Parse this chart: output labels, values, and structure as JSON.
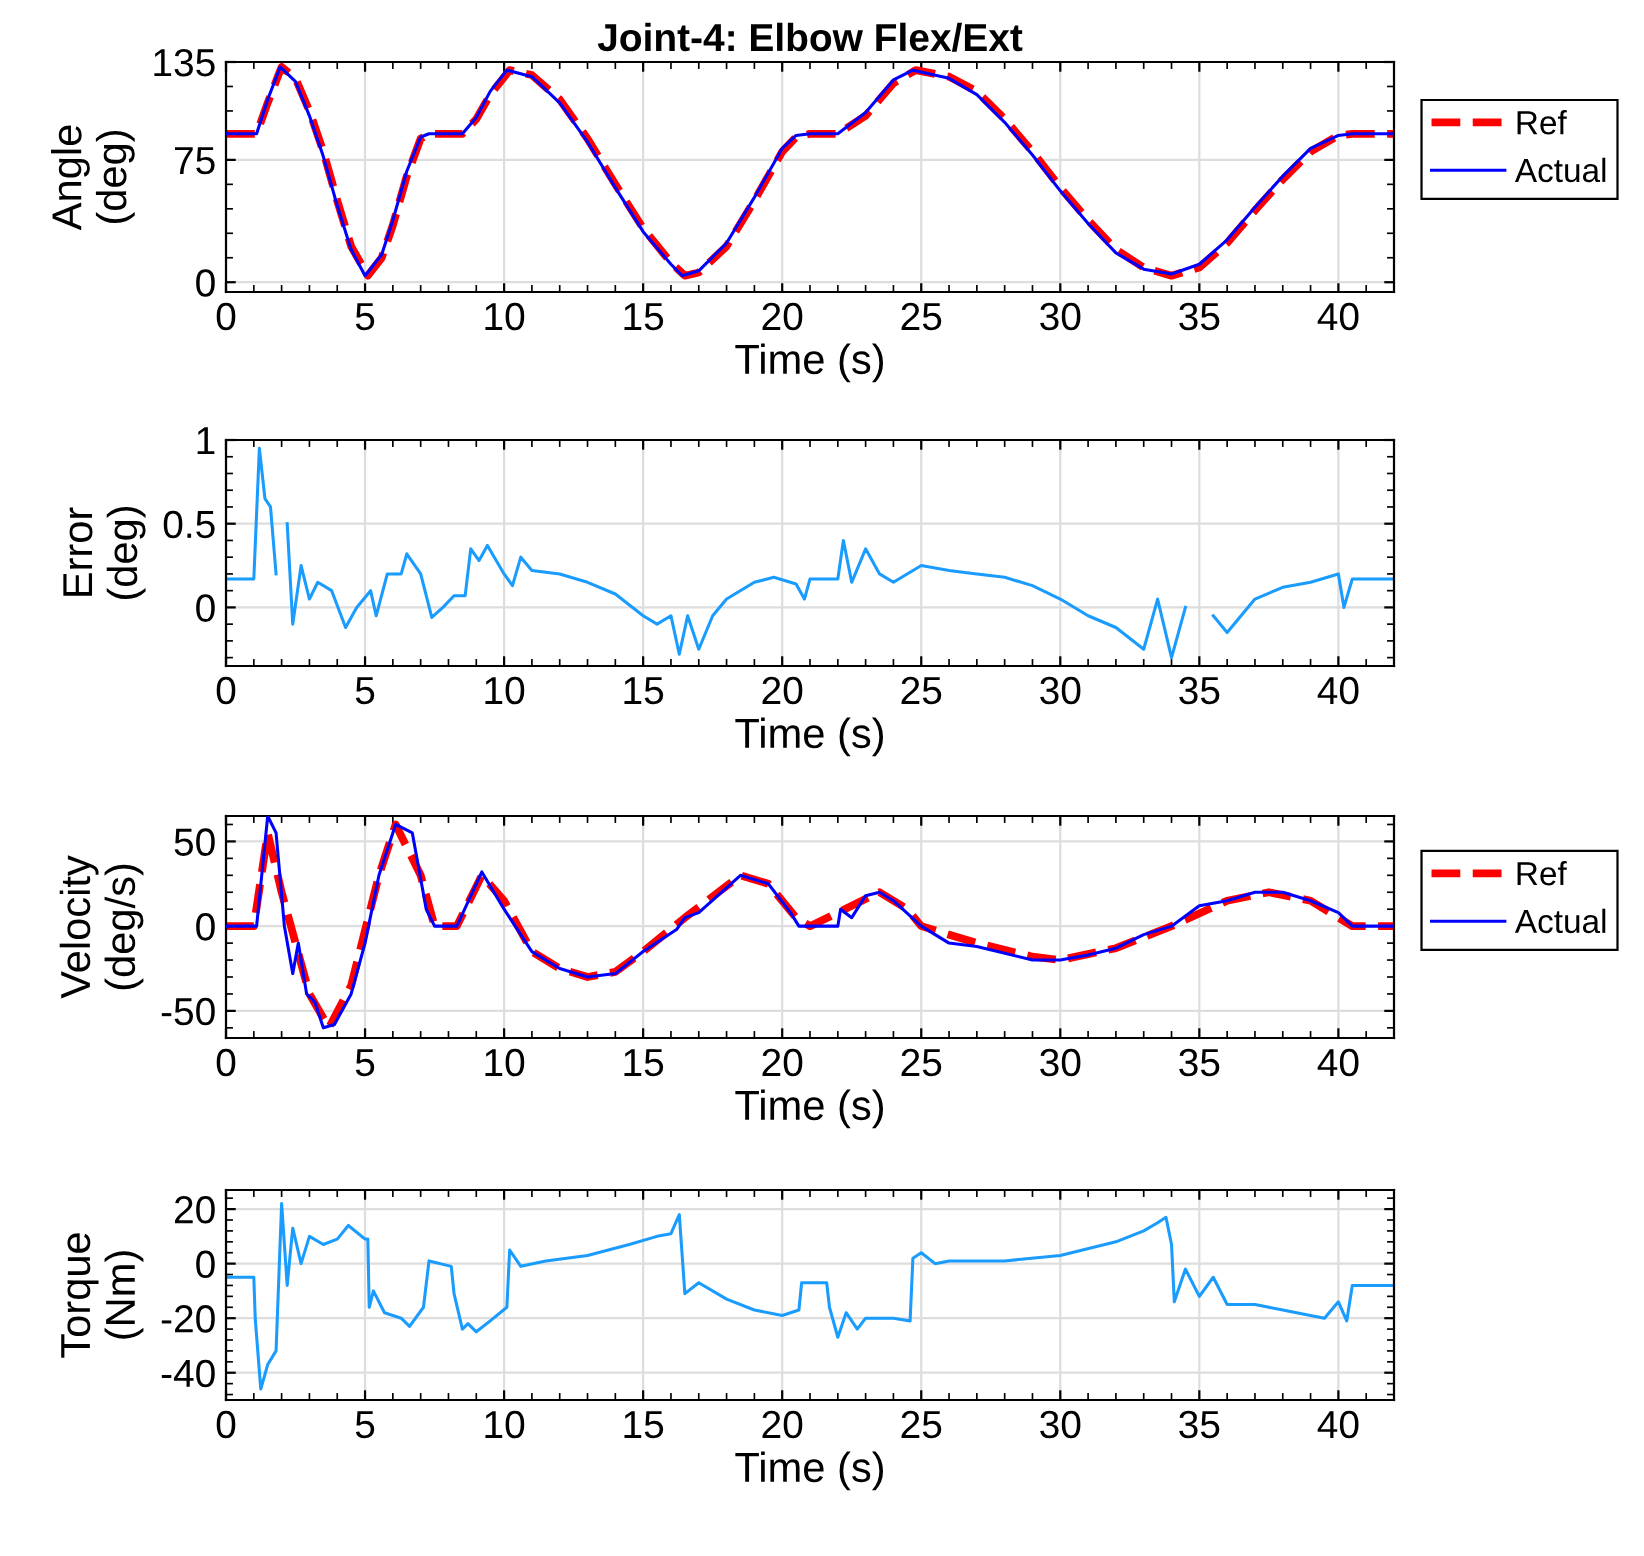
{
  "chart_data": [
    {
      "type": "line",
      "title": "Joint-4: Elbow Flex/Ext",
      "xlabel": "Time (s)",
      "ylabel": "Angle\n(deg)",
      "xlim": [
        0,
        42
      ],
      "xticks": [
        0,
        5,
        10,
        15,
        20,
        25,
        30,
        35,
        40
      ],
      "ylim": [
        -6,
        135
      ],
      "yticks": [
        0,
        75,
        135
      ],
      "grid": true,
      "legend": "right",
      "series": [
        {
          "name": "Ref",
          "color": "#ff0000",
          "line_style": "dashed",
          "x": [
            0,
            1.1,
            1.5,
            2.0,
            2.5,
            3,
            3.5,
            4,
            4.5,
            5.1,
            5.6,
            6,
            6.5,
            7,
            7.3,
            8.5,
            9,
            9.5,
            10.2,
            11,
            12,
            13,
            14,
            15,
            16,
            16.5,
            17,
            18,
            19,
            20,
            20.5,
            21,
            22,
            23,
            24,
            24.8,
            26,
            27,
            28,
            29,
            30,
            31,
            32,
            33,
            34,
            35,
            36,
            37,
            38,
            39,
            40,
            40.5,
            42
          ],
          "values": [
            91,
            91,
            110,
            132,
            125,
            105,
            80,
            50,
            22,
            4,
            15,
            35,
            65,
            88,
            91,
            91,
            100,
            115,
            130,
            127,
            112,
            88,
            60,
            33,
            12,
            4,
            6,
            22,
            50,
            80,
            89,
            91,
            91,
            102,
            122,
            130,
            126,
            117,
            100,
            80,
            58,
            38,
            20,
            9,
            4,
            9,
            24,
            44,
            63,
            80,
            90,
            91,
            91
          ]
        },
        {
          "name": "Actual",
          "color": "#0000ff",
          "line_style": "solid",
          "x": [
            0,
            1.1,
            1.5,
            1.95,
            2.5,
            3,
            3.5,
            4,
            4.5,
            5.0,
            5.6,
            6,
            6.5,
            7,
            7.3,
            8.5,
            9,
            9.5,
            10.1,
            11,
            12,
            13,
            14,
            15,
            16,
            16.4,
            17,
            18,
            19,
            20,
            20.5,
            21,
            22,
            23,
            24,
            24.7,
            26,
            27,
            28,
            29,
            30,
            31,
            32,
            33,
            34,
            35,
            36,
            37,
            38,
            39,
            40,
            40.5,
            42
          ],
          "values": [
            91,
            91,
            112,
            132,
            123,
            102,
            77,
            47,
            20,
            4,
            17,
            38,
            68,
            89,
            91,
            91,
            101,
            117,
            130,
            126,
            110,
            86,
            58,
            31,
            11,
            4,
            7,
            24,
            52,
            82,
            90,
            91,
            91,
            104,
            124,
            130,
            125,
            115,
            98,
            78,
            56,
            36,
            18,
            8,
            5,
            11,
            26,
            46,
            65,
            82,
            90,
            91,
            91
          ]
        }
      ]
    },
    {
      "type": "line",
      "xlabel": "Time (s)",
      "ylabel": "Error\n(deg)",
      "xlim": [
        0,
        42
      ],
      "xticks": [
        0,
        5,
        10,
        15,
        20,
        25,
        30,
        35,
        40
      ],
      "ylim": [
        -0.35,
        1
      ],
      "yticks": [
        0,
        0.5,
        1
      ],
      "grid": true,
      "series": [
        {
          "color": "#1a9cff",
          "line_style": "solid",
          "x": [
            0,
            1.0,
            1.2,
            1.4,
            1.6,
            1.8,
            2.0,
            2.2,
            2.4,
            2.7,
            3,
            3.3,
            3.8,
            4.3,
            4.7,
            5.2,
            5.4,
            5.8,
            6.3,
            6.5,
            7.0,
            7.4,
            7.8,
            8.2,
            8.6,
            8.8,
            9.1,
            9.4,
            10,
            10.3,
            10.6,
            11,
            12,
            13,
            14,
            15,
            15.5,
            16,
            16.3,
            16.6,
            17,
            17.5,
            18,
            19,
            19.7,
            20.5,
            20.8,
            21,
            22,
            22.2,
            22.5,
            23,
            23.5,
            24,
            25,
            26,
            27,
            28,
            29,
            30,
            31,
            32,
            33,
            33.5,
            34,
            34.5,
            35,
            35.5,
            36,
            37,
            38,
            39,
            40,
            40.2,
            40.5,
            42
          ],
          "values": [
            0.17,
            0.17,
            0.95,
            0.65,
            0.6,
            0.2,
            null,
            0.5,
            -0.1,
            0.25,
            0.05,
            0.15,
            0.1,
            -0.12,
            0.0,
            0.1,
            -0.05,
            0.2,
            0.2,
            0.32,
            0.2,
            -0.06,
            0.0,
            0.07,
            0.07,
            0.35,
            0.28,
            0.37,
            0.2,
            0.13,
            0.3,
            0.22,
            0.2,
            0.15,
            0.08,
            -0.05,
            -0.1,
            -0.05,
            -0.28,
            -0.05,
            -0.25,
            -0.05,
            0.05,
            0.15,
            0.18,
            0.14,
            0.05,
            0.17,
            0.17,
            0.4,
            0.15,
            0.35,
            0.2,
            0.15,
            0.25,
            0.22,
            0.2,
            0.18,
            0.13,
            0.05,
            -0.05,
            -0.12,
            -0.25,
            0.05,
            -0.3,
            0.0,
            null,
            -0.05,
            -0.15,
            0.05,
            0.12,
            0.15,
            0.2,
            0.0,
            0.17,
            0.17
          ]
        }
      ]
    },
    {
      "type": "line",
      "xlabel": "Time (s)",
      "ylabel": "Velocity\n(deg/s)",
      "xlim": [
        0,
        42
      ],
      "xticks": [
        0,
        5,
        10,
        15,
        20,
        25,
        30,
        35,
        40
      ],
      "ylim": [
        -66,
        65
      ],
      "yticks": [
        -50,
        0,
        50
      ],
      "grid": true,
      "legend": "right",
      "series": [
        {
          "name": "Ref",
          "color": "#ff0000",
          "line_style": "dashed",
          "x": [
            0,
            1.0,
            1.5,
            2,
            3,
            3.7,
            4.5,
            5.5,
            6.1,
            7,
            7.5,
            8.3,
            9.2,
            10,
            11,
            12,
            13,
            14,
            15,
            16.5,
            18.5,
            19.5,
            20.5,
            21,
            22,
            23.5,
            24.5,
            25,
            27,
            29,
            30,
            32,
            34,
            36,
            37.5,
            39,
            40.5,
            42
          ],
          "values": [
            0,
            0,
            55,
            20,
            -40,
            -60,
            -35,
            30,
            60,
            30,
            0,
            0,
            30,
            15,
            -15,
            -25,
            -30,
            -27,
            -15,
            5,
            30,
            25,
            5,
            0,
            8,
            20,
            10,
            0,
            -10,
            -18,
            -20,
            -13,
            0,
            15,
            20,
            15,
            0,
            0
          ]
        },
        {
          "name": "Actual",
          "color": "#0000ff",
          "line_style": "solid",
          "x": [
            0,
            1.1,
            1.5,
            1.8,
            2.1,
            2.4,
            2.6,
            2.9,
            3.2,
            3.5,
            3.9,
            4.5,
            5.0,
            5.5,
            6.1,
            6.7,
            7.2,
            7.5,
            8.3,
            9.2,
            10,
            11,
            12,
            13,
            14,
            15,
            16.2,
            16.5,
            17,
            18.5,
            19.5,
            20.3,
            20.6,
            22,
            22.1,
            22.5,
            23,
            23.5,
            24,
            25,
            26,
            27,
            29,
            30,
            31,
            32,
            33,
            34,
            35,
            36,
            37,
            38,
            39,
            40,
            40.5,
            42
          ],
          "values": [
            0,
            0,
            65,
            55,
            0,
            -28,
            -10,
            -40,
            -45,
            -60,
            -58,
            -40,
            -10,
            30,
            60,
            55,
            10,
            0,
            0,
            32,
            10,
            -15,
            -25,
            -30,
            -28,
            -15,
            -2,
            5,
            8,
            30,
            25,
            8,
            0,
            0,
            10,
            5,
            18,
            20,
            15,
            0,
            -10,
            -12,
            -20,
            -20,
            -17,
            -13,
            -5,
            0,
            12,
            15,
            20,
            20,
            15,
            8,
            0,
            0
          ]
        }
      ]
    },
    {
      "type": "line",
      "xlabel": "Time (s)",
      "ylabel": "Torque\n(Nm)",
      "xlim": [
        0,
        42
      ],
      "xticks": [
        0,
        5,
        10,
        15,
        20,
        25,
        30,
        35,
        40
      ],
      "ylim": [
        -50,
        27
      ],
      "yticks": [
        -40,
        -20,
        0,
        20
      ],
      "grid": true,
      "series": [
        {
          "color": "#1a9cff",
          "line_style": "solid",
          "x": [
            0,
            1.0,
            1.05,
            1.25,
            1.5,
            1.8,
            2.0,
            2.2,
            2.4,
            2.7,
            3.0,
            3.5,
            4.0,
            4.4,
            5.0,
            5.1,
            5.15,
            5.3,
            5.7,
            6.3,
            6.6,
            7.1,
            7.3,
            8.1,
            8.2,
            8.5,
            8.7,
            9.0,
            9.5,
            10.1,
            10.2,
            10.6,
            11.5,
            13,
            14.5,
            15.5,
            16.0,
            16.3,
            16.5,
            17,
            18,
            19,
            20,
            20.6,
            20.7,
            21.6,
            21.7,
            22,
            22.3,
            22.7,
            23,
            24,
            24.6,
            24.7,
            25,
            25.5,
            26,
            28,
            30,
            32,
            33,
            33.5,
            33.8,
            34.0,
            34.1,
            34.5,
            35,
            35.5,
            36,
            37,
            38,
            39,
            39.5,
            40,
            40.3,
            40.5,
            42
          ],
          "values": [
            -5,
            -5,
            -20,
            -46,
            -37,
            -32,
            22,
            -8,
            13,
            0,
            10,
            7,
            9,
            14,
            9,
            9,
            -16,
            -10,
            -18,
            -20,
            -23,
            -16,
            1,
            -1,
            -11,
            -24,
            -22,
            -25,
            -21,
            -16,
            5,
            -1,
            1,
            3,
            7,
            10,
            11,
            18,
            -11,
            -7,
            -13,
            -17,
            -19,
            -17,
            -7,
            -7,
            -16,
            -27,
            -18,
            -24,
            -20,
            -20,
            -21,
            2,
            4,
            0,
            1,
            1,
            3,
            8,
            12,
            15,
            17,
            7,
            -14,
            -2,
            -12,
            -5,
            -15,
            -15,
            -17,
            -19,
            -20,
            -14,
            -21,
            -8,
            -8
          ]
        }
      ]
    }
  ]
}
